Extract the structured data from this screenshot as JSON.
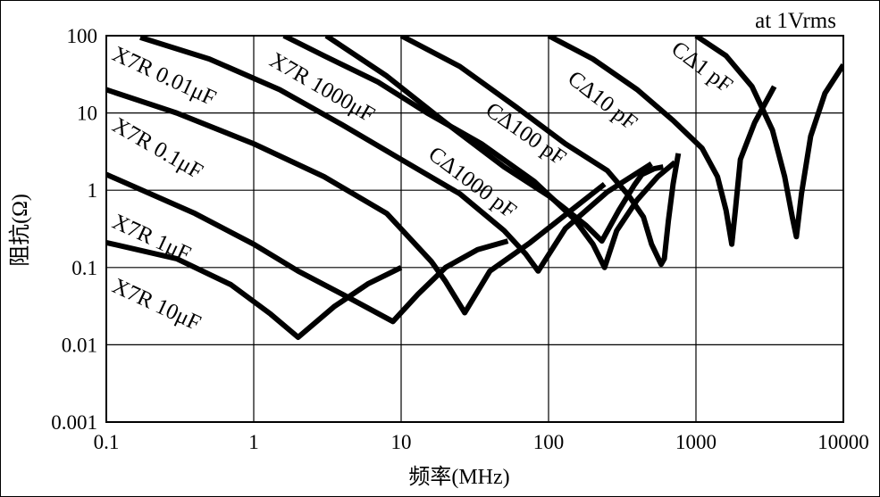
{
  "chart_data": {
    "type": "line",
    "title": "",
    "annotation": "at 1Vrms",
    "xlabel": "频率(MHz)",
    "ylabel": "阻抗(Ω)",
    "xscale": "log",
    "yscale": "log",
    "xlim": [
      0.1,
      10000
    ],
    "ylim": [
      0.001,
      100
    ],
    "xticks": [
      0.1,
      1,
      10,
      100,
      1000,
      10000
    ],
    "xtick_labels": [
      "0.1",
      "1",
      "10",
      "100",
      "1000",
      "10000"
    ],
    "yticks": [
      0.001,
      0.01,
      0.1,
      1,
      10,
      100
    ],
    "ytick_labels": [
      "0.001",
      "0.01",
      "0.1",
      "1",
      "10",
      "100"
    ],
    "grid": true,
    "legend": "inline labels along curves",
    "series": [
      {
        "name": "X7R 10μF",
        "x": [
          0.1,
          0.3,
          0.7,
          1.3,
          2.0,
          3.5,
          6.0,
          10.0
        ],
        "y": [
          0.21,
          0.13,
          0.06,
          0.025,
          0.0125,
          0.031,
          0.062,
          0.1
        ]
      },
      {
        "name": "X7R 1μF",
        "x": [
          0.1,
          0.4,
          1.0,
          2.0,
          4.0,
          8.8,
          13.0,
          20.0,
          33.0,
          53.0
        ],
        "y": [
          1.6,
          0.5,
          0.2,
          0.09,
          0.045,
          0.02,
          0.045,
          0.1,
          0.17,
          0.22
        ]
      },
      {
        "name": "X7R 0.1μF",
        "x": [
          0.1,
          0.3,
          1.0,
          3.0,
          8.0,
          16.0,
          20.0,
          27.0,
          40.0,
          75.0,
          130.0,
          240.0
        ],
        "y": [
          20.0,
          10.0,
          4.0,
          1.5,
          0.5,
          0.12,
          0.066,
          0.026,
          0.09,
          0.21,
          0.48,
          1.2
        ]
      },
      {
        "name": "X7R 0.01μF",
        "x": [
          0.17,
          0.5,
          1.5,
          4.0,
          10.0,
          25.0,
          50.0,
          70.0,
          85.0,
          130.0,
          250.0,
          500.0
        ],
        "y": [
          95.0,
          50.0,
          20.0,
          7.0,
          2.5,
          0.9,
          0.3,
          0.15,
          0.09,
          0.32,
          0.95,
          2.2
        ]
      },
      {
        "name": "X7R 1000μF",
        "x": [
          1.6,
          3.0,
          7.0,
          15.0,
          35.0,
          80.0,
          150.0,
          200.0,
          240.0,
          290.0,
          400.0,
          550.0,
          720.0
        ],
        "y": [
          100.0,
          55.0,
          25.0,
          10.0,
          4.0,
          1.3,
          0.42,
          0.2,
          0.1,
          0.3,
          0.75,
          1.5,
          2.3
        ]
      },
      {
        "name": "CΔ1000 pF",
        "x": [
          3.1,
          8.0,
          20.0,
          50.0,
          100.0,
          180.0,
          230.0,
          300.0,
          380.0,
          430.0,
          520.0,
          600.0
        ],
        "y": [
          100.0,
          30.0,
          7.5,
          2.0,
          0.85,
          0.35,
          0.22,
          0.55,
          1.15,
          1.6,
          1.9,
          2.0
        ]
      },
      {
        "name": "CΔ100 pF",
        "x": [
          10.0,
          25.0,
          60.0,
          130.0,
          250.0,
          350.0,
          440.0,
          500.0,
          580.0,
          610.0,
          650.0,
          700.0,
          760.0
        ],
        "y": [
          100.0,
          40.0,
          12.0,
          4.0,
          1.8,
          0.85,
          0.45,
          0.2,
          0.11,
          0.13,
          0.4,
          1.2,
          3.0
        ]
      },
      {
        "name": "CΔ10 pF",
        "x": [
          100.0,
          200.0,
          400.0,
          700.0,
          1100.0,
          1400.0,
          1600.0,
          1750.0,
          1850.0,
          2000.0,
          2500.0,
          3400.0
        ],
        "y": [
          100.0,
          50.0,
          20.0,
          8.0,
          3.5,
          1.5,
          0.55,
          0.2,
          0.55,
          2.5,
          7.5,
          22.0
        ]
      },
      {
        "name": "CΔ1 pF",
        "x": [
          1000.0,
          1600.0,
          2400.0,
          3300.0,
          4000.0,
          4500.0,
          4800.0,
          5200.0,
          6000.0,
          7500.0,
          10000.0
        ],
        "y": [
          100.0,
          55.0,
          22.0,
          6.0,
          1.5,
          0.45,
          0.25,
          0.9,
          5.0,
          18.0,
          42.0
        ]
      }
    ]
  }
}
